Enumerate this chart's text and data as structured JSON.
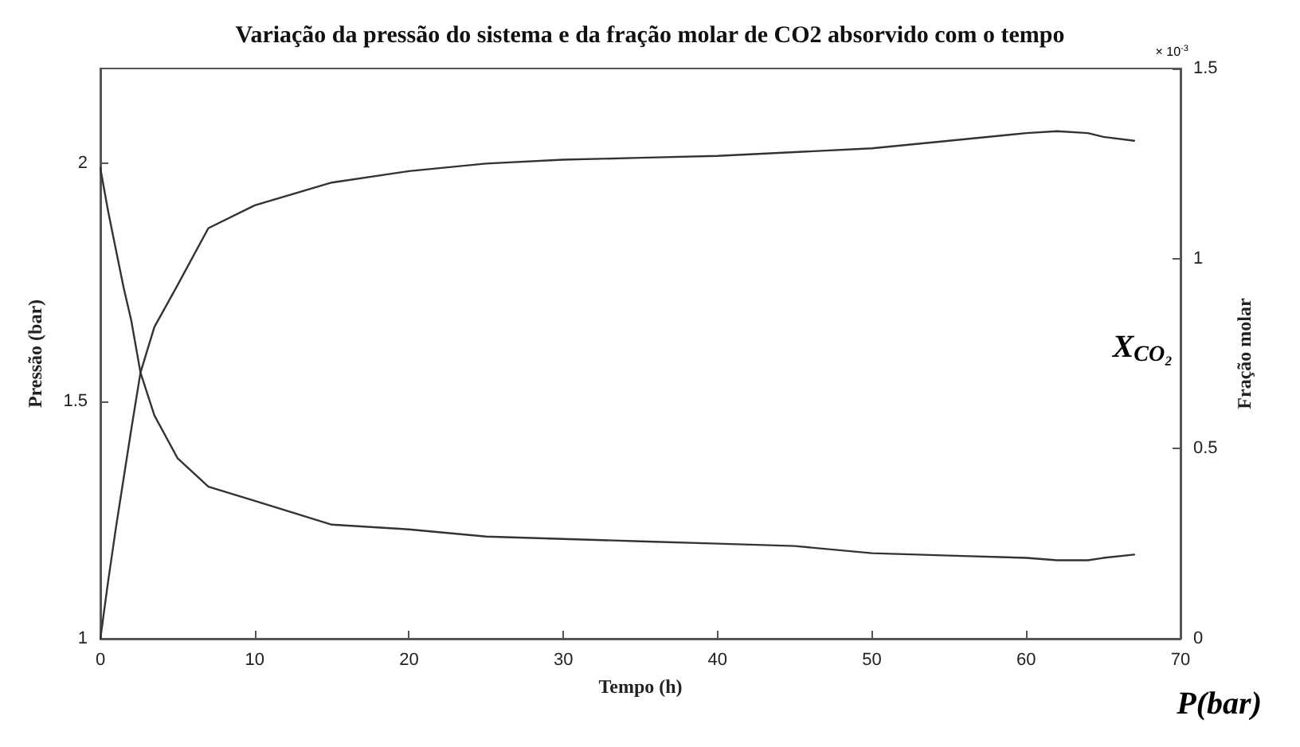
{
  "chart_data": {
    "type": "line",
    "title": "Variação da pressão do sistema e da fração molar de CO2 absorvido com o tempo",
    "xlabel": "Tempo (h)",
    "ylabel": "Pressão (bar)",
    "y2label": "Fração molar",
    "annotations": [
      "× 10$^{-3}$",
      "X$_{CO₂}$",
      "P(bar)"
    ],
    "series": [
      {
        "color": "#333333",
        "x": [
          0,
          0.5,
          1,
          1.5,
          2,
          2.6,
          3.5,
          5,
          7,
          10,
          15,
          20,
          25,
          30,
          35,
          40,
          45,
          50,
          55,
          60,
          62,
          64,
          65,
          67
        ],
        "values": [
          1.99,
          1.9,
          1.82,
          1.74,
          1.67,
          1.56,
          1.47,
          1.38,
          1.32,
          1.29,
          1.24,
          1.23,
          1.215,
          1.21,
          1.205,
          1.2,
          1.195,
          1.18,
          1.175,
          1.17,
          1.165,
          1.165,
          1.17,
          1.177
        ]
      },
      {
        "color": "#333333",
        "axis": "y2",
        "x": [
          0,
          0.5,
          1,
          1.5,
          2,
          2.6,
          3.5,
          5,
          7,
          10,
          15,
          20,
          25,
          30,
          35,
          40,
          45,
          50,
          55,
          60,
          62,
          64,
          65,
          67
        ],
        "values": [
          0.0,
          0.15,
          0.29,
          0.42,
          0.55,
          0.7,
          0.82,
          0.93,
          1.08,
          1.14,
          1.2,
          1.23,
          1.25,
          1.26,
          1.265,
          1.27,
          1.28,
          1.29,
          1.31,
          1.33,
          1.335,
          1.33,
          1.32,
          1.31
        ]
      }
    ],
    "xlim": [
      0,
      70
    ],
    "xticks": [
      0,
      10,
      20,
      30,
      40,
      50,
      60,
      70
    ],
    "ylim": [
      1,
      2.2
    ],
    "yticks": [
      1,
      1.5,
      2
    ],
    "y2lim": [
      0,
      1.5
    ],
    "y2ticks": [
      0,
      0.5,
      1,
      1.5
    ],
    "grid": false,
    "marker": "none",
    "line_style": "solid"
  }
}
